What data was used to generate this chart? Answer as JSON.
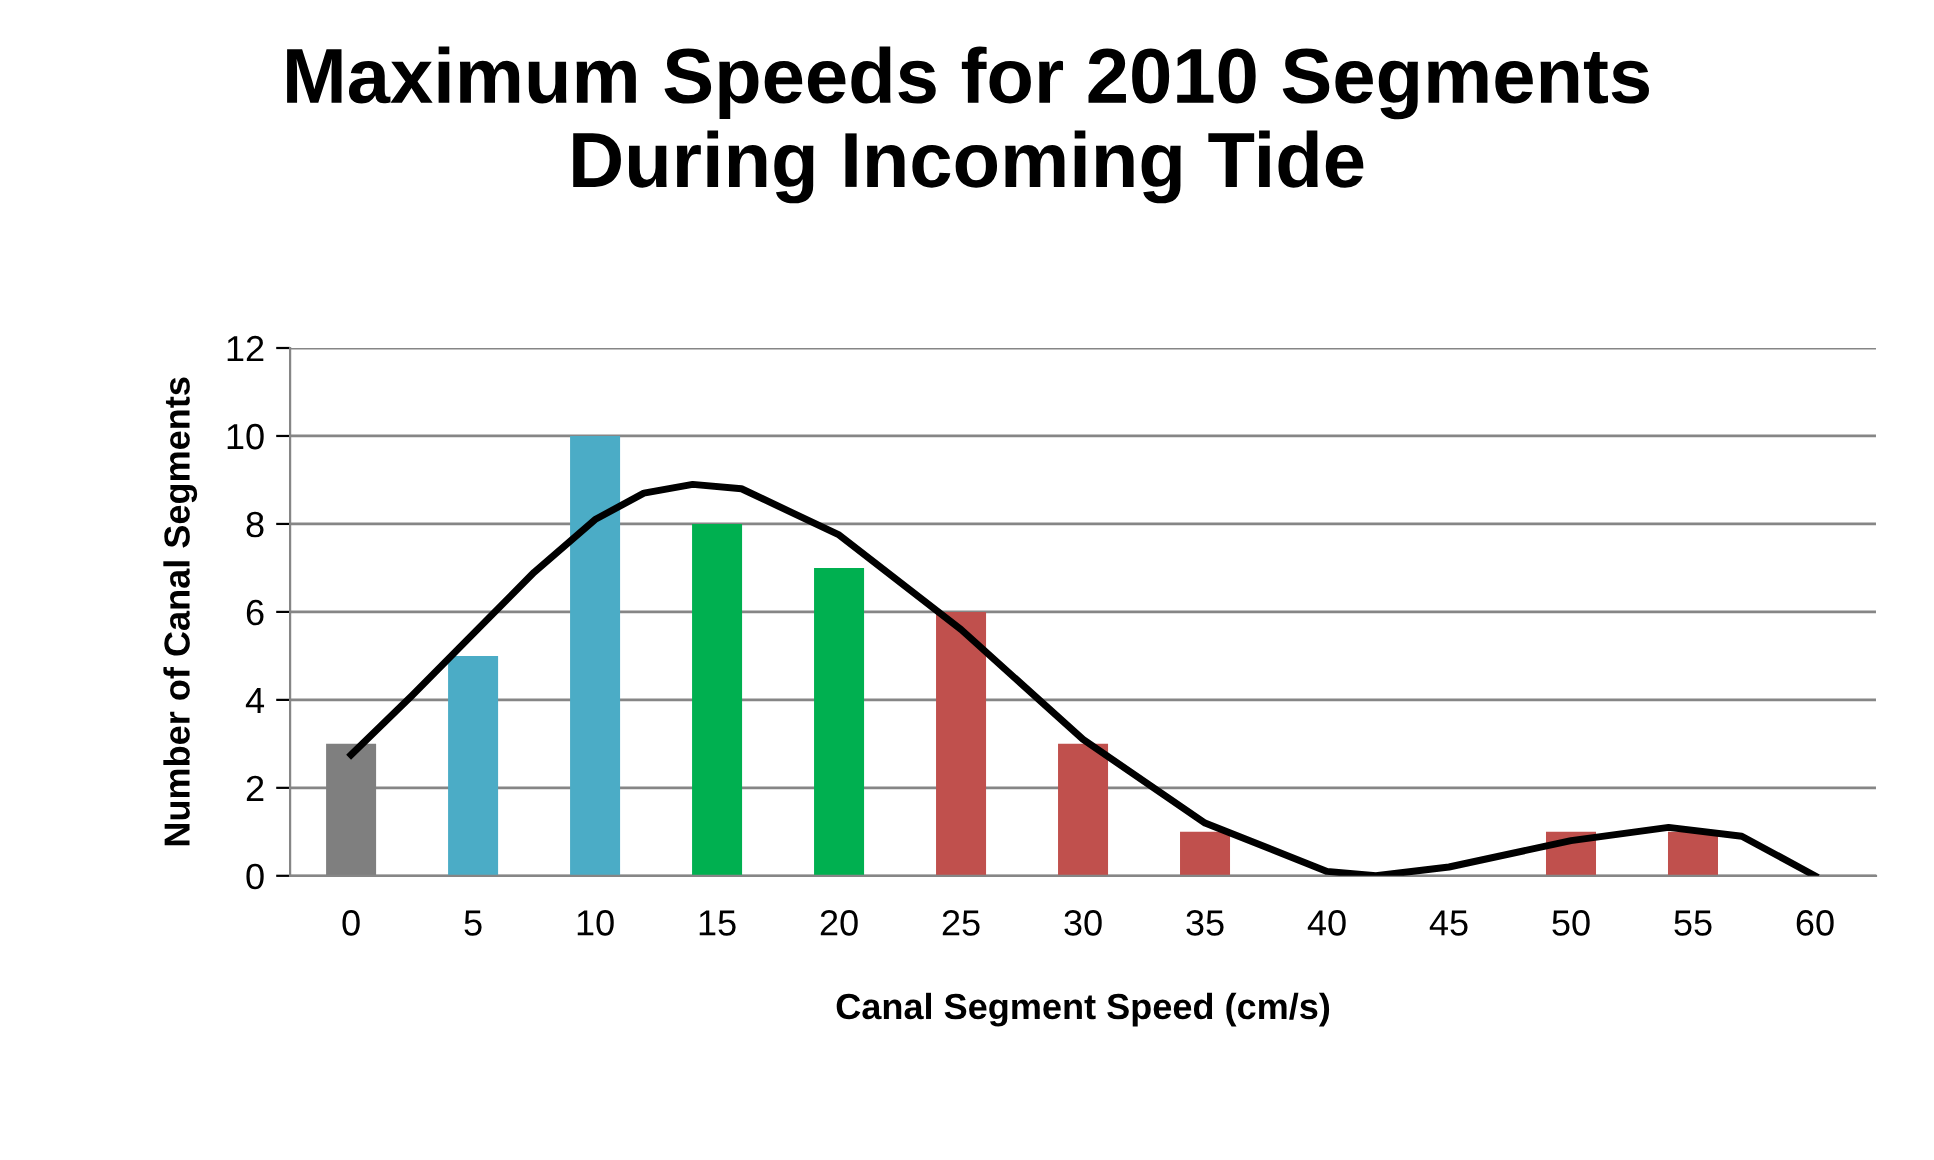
{
  "chart_data": {
    "type": "bar",
    "title": "Maximum Speeds for 2010 Segments\nDuring Incoming Tide",
    "xlabel": "Canal Segment Speed (cm/s)",
    "ylabel": "Number of Canal Segments",
    "x": [
      0,
      5,
      10,
      15,
      20,
      25,
      30,
      35,
      40,
      45,
      50,
      55,
      60
    ],
    "xlim": [
      -2.5,
      62.5
    ],
    "xticks": [
      0,
      5,
      10,
      15,
      20,
      25,
      30,
      35,
      40,
      45,
      50,
      55,
      60
    ],
    "ylim": [
      0,
      12
    ],
    "yticks": [
      0,
      2,
      4,
      6,
      8,
      10,
      12
    ],
    "grid": "y",
    "series": [
      {
        "values": [
          3,
          5,
          10,
          8,
          7,
          6,
          3,
          1,
          0,
          0,
          1,
          1,
          0
        ],
        "colors": [
          "#7f7f7f",
          "#4bacc6",
          "#4bacc6",
          "#00b050",
          "#00b050",
          "#c0504d",
          "#c0504d",
          "#c0504d",
          "#c0504d",
          "#c0504d",
          "#c0504d",
          "#c0504d",
          "#c0504d"
        ]
      },
      {
        "type": "line",
        "color": "#000000",
        "x": [
          0,
          2.5,
          5,
          7.5,
          10,
          12,
          14,
          16,
          20,
          25,
          30,
          35,
          40,
          42,
          45,
          50,
          54,
          57,
          60
        ],
        "values": [
          2.75,
          4.1,
          5.5,
          6.9,
          8.1,
          8.7,
          8.9,
          8.8,
          7.75,
          5.6,
          3.1,
          1.2,
          0.1,
          0,
          0.2,
          0.8,
          1.1,
          0.9,
          0
        ]
      }
    ]
  }
}
